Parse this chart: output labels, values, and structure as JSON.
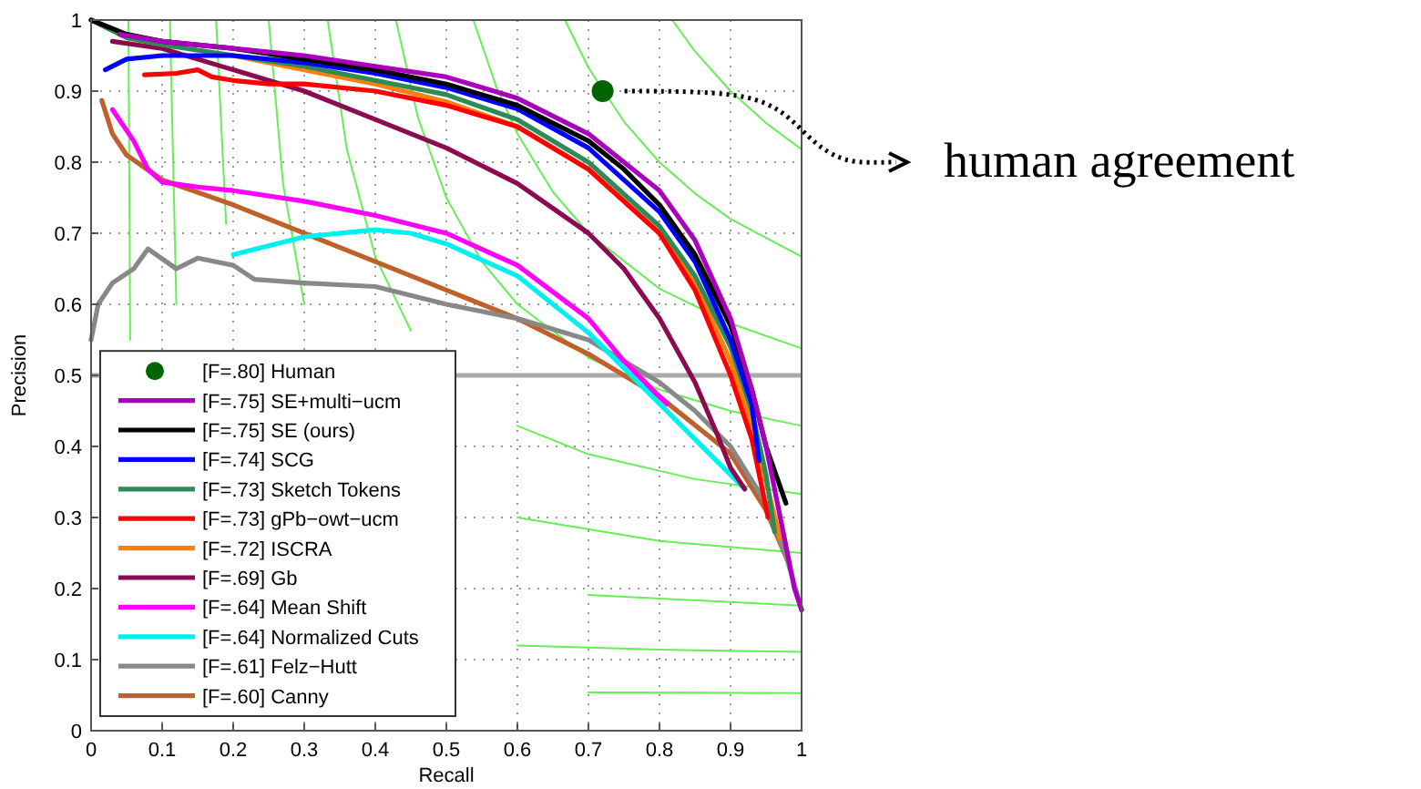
{
  "chart_data": {
    "type": "line",
    "xlabel": "Recall",
    "ylabel": "Precision",
    "xlim": [
      0,
      1
    ],
    "ylim": [
      0,
      1
    ],
    "xticks": [
      0,
      0.1,
      0.2,
      0.3,
      0.4,
      0.5,
      0.6,
      0.7,
      0.8,
      0.9,
      1
    ],
    "yticks": [
      0,
      0.1,
      0.2,
      0.3,
      0.4,
      0.5,
      0.6,
      0.7,
      0.8,
      0.9,
      1
    ],
    "grid": true,
    "legend": "bottom left",
    "ref_lines": [
      {
        "axis": "y",
        "value": 0.5,
        "color": "#aaaaaa"
      }
    ],
    "annotations": [
      "human agreement"
    ],
    "series": [
      {
        "color": "#66ee55",
        "x": [
          0.0526,
          0.055,
          0.06,
          0.07,
          0.08,
          0.1,
          0.15,
          0.2,
          0.3,
          0.5,
          0.7,
          1
        ],
        "values": [
          1,
          0.55,
          null,
          null,
          null,
          null,
          null,
          null,
          null,
          null,
          0.054,
          0.053
        ]
      },
      {
        "color": "#66ee55",
        "x": [
          0.111,
          0.12,
          0.14,
          0.17,
          0.2,
          0.3,
          0.4,
          0.6,
          0.8,
          1
        ],
        "values": [
          1,
          0.6,
          null,
          null,
          null,
          null,
          null,
          0.12,
          0.114,
          0.111
        ]
      },
      {
        "color": "#66ee55",
        "x": [
          0.176,
          0.19,
          0.22,
          0.26,
          0.3,
          0.4,
          0.5,
          0.7,
          1
        ],
        "values": [
          1,
          0.713,
          null,
          null,
          null,
          null,
          null,
          0.191,
          0.176
        ]
      },
      {
        "color": "#66ee55",
        "x": [
          0.25,
          0.27,
          0.3,
          0.35,
          0.4,
          0.5,
          0.6,
          0.8,
          1
        ],
        "values": [
          1,
          0.771,
          0.6,
          null,
          null,
          null,
          0.3,
          0.267,
          0.25
        ]
      },
      {
        "color": "#66ee55",
        "x": [
          0.333,
          0.36,
          0.4,
          0.45,
          0.5,
          0.6,
          0.7,
          0.85,
          1
        ],
        "values": [
          1,
          0.818,
          0.667,
          0.563,
          null,
          0.429,
          0.389,
          0.354,
          0.333
        ]
      },
      {
        "color": "#66ee55",
        "x": [
          0.429,
          0.46,
          0.5,
          0.55,
          0.6,
          0.7,
          0.8,
          0.9,
          1
        ],
        "values": [
          1,
          0.863,
          0.75,
          0.66,
          0.6,
          0.525,
          0.48,
          0.45,
          0.429
        ]
      },
      {
        "color": "#66ee55",
        "x": [
          0.538,
          0.57,
          0.6,
          0.65,
          0.7,
          0.8,
          0.9,
          1
        ],
        "values": [
          1,
          0.907,
          0.84,
          0.758,
          0.7,
          0.622,
          0.573,
          0.538
        ]
      },
      {
        "color": "#66ee55",
        "x": [
          0.667,
          0.7,
          0.75,
          0.8,
          0.85,
          0.9,
          1
        ],
        "values": [
          1,
          0.933,
          0.857,
          0.8,
          0.756,
          0.72,
          0.667
        ]
      },
      {
        "color": "#66ee55",
        "x": [
          0.818,
          0.85,
          0.9,
          0.95,
          1
        ],
        "values": [
          1,
          0.956,
          0.9,
          0.855,
          0.818
        ]
      },
      {
        "name": "[F=.60] Canny",
        "color": "#c0602a",
        "x": [
          0.015,
          0.03,
          0.05,
          0.1,
          0.2,
          0.3,
          0.4,
          0.5,
          0.6,
          0.7,
          0.8,
          0.85,
          0.9,
          0.95,
          0.98
        ],
        "values": [
          0.887,
          0.84,
          0.81,
          0.775,
          0.74,
          0.7,
          0.66,
          0.62,
          0.58,
          0.53,
          0.47,
          0.43,
          0.39,
          0.31,
          0.24
        ]
      },
      {
        "name": "[F=.61] Felz−Hutt",
        "color": "#888888",
        "x": [
          0,
          0.01,
          0.03,
          0.06,
          0.08,
          0.12,
          0.15,
          0.2,
          0.23,
          0.3,
          0.4,
          0.5,
          0.6,
          0.7,
          0.8,
          0.85,
          0.9,
          0.95,
          0.98,
          1
        ],
        "values": [
          0.55,
          0.6,
          0.63,
          0.65,
          0.678,
          0.65,
          0.665,
          0.655,
          0.635,
          0.63,
          0.625,
          0.6,
          0.58,
          0.55,
          0.49,
          0.45,
          0.4,
          0.32,
          0.24,
          0.17
        ]
      },
      {
        "name": "[F=.64] Normalized Cuts",
        "color": "#00f0f0",
        "x": [
          0.2,
          0.3,
          0.4,
          0.45,
          0.5,
          0.6,
          0.7,
          0.8,
          0.85,
          0.9,
          0.92
        ],
        "values": [
          0.67,
          0.695,
          0.705,
          0.7,
          0.685,
          0.64,
          0.56,
          0.46,
          0.41,
          0.36,
          0.34
        ]
      },
      {
        "name": "[F=.64] Mean Shift",
        "color": "#ff00ff",
        "x": [
          0.03,
          0.06,
          0.08,
          0.1,
          0.15,
          0.2,
          0.3,
          0.4,
          0.5,
          0.6,
          0.7,
          0.75,
          0.8,
          0.81
        ],
        "values": [
          0.874,
          0.83,
          0.79,
          0.772,
          0.765,
          0.76,
          0.745,
          0.725,
          0.7,
          0.655,
          0.58,
          0.52,
          0.47,
          0.46
        ]
      },
      {
        "name": "[F=.69] Gb",
        "color": "#8b0a50",
        "x": [
          0.03,
          0.1,
          0.2,
          0.3,
          0.4,
          0.5,
          0.6,
          0.7,
          0.75,
          0.8,
          0.85,
          0.88,
          0.9,
          0.92
        ],
        "values": [
          0.97,
          0.96,
          0.93,
          0.9,
          0.86,
          0.82,
          0.77,
          0.7,
          0.65,
          0.58,
          0.49,
          0.42,
          0.37,
          0.34
        ]
      },
      {
        "name": "[F=.72] ISCRA",
        "color": "#ff7f0e",
        "x": [
          0.2,
          0.3,
          0.4,
          0.5,
          0.6,
          0.7,
          0.8,
          0.85,
          0.9,
          0.93,
          0.96,
          0.97
        ],
        "values": [
          0.95,
          0.93,
          0.91,
          0.885,
          0.85,
          0.79,
          0.7,
          0.63,
          0.52,
          0.43,
          0.31,
          0.27
        ]
      },
      {
        "name": "[F=.73] gPb−owt−ucm",
        "color": "#ff0000",
        "x": [
          0.075,
          0.12,
          0.15,
          0.17,
          0.2,
          0.25,
          0.3,
          0.4,
          0.5,
          0.6,
          0.7,
          0.8,
          0.85,
          0.9,
          0.93,
          0.953
        ],
        "values": [
          0.923,
          0.925,
          0.93,
          0.92,
          0.915,
          0.91,
          0.91,
          0.9,
          0.88,
          0.85,
          0.79,
          0.7,
          0.62,
          0.5,
          0.41,
          0.3
        ]
      },
      {
        "name": "[F=.73] Sketch Tokens",
        "color": "#2e8b57",
        "x": [
          0,
          0.05,
          0.1,
          0.2,
          0.3,
          0.4,
          0.5,
          0.6,
          0.7,
          0.8,
          0.85,
          0.9,
          0.93,
          0.95,
          0.962
        ],
        "values": [
          1,
          0.975,
          0.965,
          0.95,
          0.935,
          0.915,
          0.895,
          0.86,
          0.8,
          0.71,
          0.64,
          0.54,
          0.45,
          0.36,
          0.28
        ]
      },
      {
        "name": "[F=.74] SCG",
        "color": "#0000ff",
        "x": [
          0.02,
          0.05,
          0.1,
          0.2,
          0.3,
          0.4,
          0.5,
          0.6,
          0.7,
          0.8,
          0.85,
          0.9,
          0.93,
          0.94
        ],
        "values": [
          0.93,
          0.945,
          0.95,
          0.95,
          0.94,
          0.925,
          0.905,
          0.875,
          0.82,
          0.73,
          0.66,
          0.55,
          0.46,
          0.38
        ]
      },
      {
        "name": "[F=.75] SE (ours)",
        "color": "#000000",
        "x": [
          0,
          0.05,
          0.1,
          0.2,
          0.3,
          0.4,
          0.5,
          0.6,
          0.7,
          0.75,
          0.8,
          0.85,
          0.9,
          0.93,
          0.95,
          0.978
        ],
        "values": [
          1,
          0.98,
          0.97,
          0.96,
          0.945,
          0.93,
          0.91,
          0.88,
          0.83,
          0.79,
          0.74,
          0.67,
          0.57,
          0.48,
          0.4,
          0.32
        ]
      },
      {
        "name": "[F=.75] SE+multi−ucm",
        "color": "#aa00bb",
        "x": [
          0.04,
          0.1,
          0.2,
          0.3,
          0.4,
          0.5,
          0.6,
          0.7,
          0.8,
          0.85,
          0.9,
          0.93,
          0.95,
          0.97,
          0.99,
          1
        ],
        "values": [
          0.98,
          0.97,
          0.96,
          0.95,
          0.935,
          0.92,
          0.89,
          0.84,
          0.76,
          0.69,
          0.58,
          0.48,
          0.4,
          0.3,
          0.2,
          0.17
        ]
      },
      {
        "name": "[F=.80] Human",
        "type": "scatter",
        "color": "#006400",
        "x": [
          0.72
        ],
        "values": [
          0.9
        ]
      }
    ]
  }
}
